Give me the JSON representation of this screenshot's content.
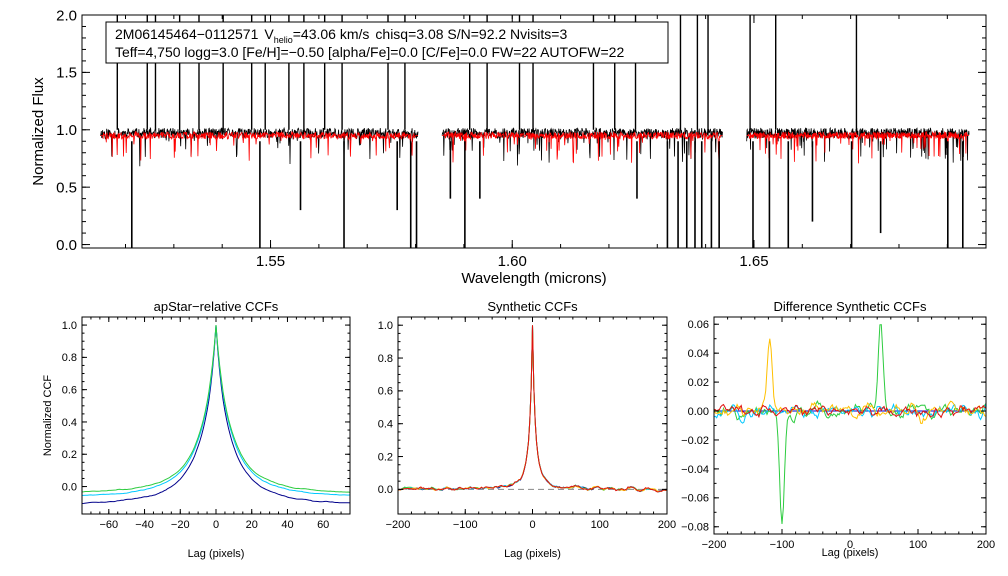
{
  "chart_data": [
    {
      "type": "line",
      "title": "",
      "xlabel": "Wavelength (microns)",
      "ylabel": "Normalized Flux",
      "xlim": [
        1.511,
        1.698
      ],
      "ylim": [
        -0.03,
        2.0
      ],
      "xticks": [
        1.55,
        1.6,
        1.65
      ],
      "xtick_labels": [
        "1.55",
        "1.60",
        "1.65"
      ],
      "yticks": [
        0.0,
        0.5,
        1.0,
        1.5,
        2.0
      ],
      "ytick_labels": [
        "0.0",
        "0.5",
        "1.0",
        "1.5",
        "2.0"
      ],
      "gaps": [
        [
          1.5805,
          1.5855
        ],
        [
          1.6435,
          1.6485
        ]
      ],
      "annotation": {
        "star_id": "2M06145464−0112571",
        "v_label": "V",
        "v_sub": "helio",
        "v_value": "=43.06 km/s",
        "line1_rest": "chisq=3.08  S/N=92.2  Nvisits=3",
        "line2": "Teff=4,750 logg=3.0 [Fe/H]=−0.50 [alpha/Fe]=0.0 [C/Fe]=0.0 FW=22 AUTOFW=22"
      },
      "series": [
        {
          "name": "observed",
          "color": "#000000",
          "continuum": 0.97
        },
        {
          "name": "model",
          "color": "#ff0000",
          "continuum": 0.95
        }
      ],
      "spikes_up": [
        1.5183,
        1.5245,
        1.5262,
        1.5312,
        1.5352,
        1.5402,
        1.5461,
        1.5489,
        1.5538,
        1.5569,
        1.5612,
        1.5648,
        1.5743,
        1.5778,
        1.5912,
        1.5948,
        1.6015,
        1.6043,
        1.6168,
        1.6212,
        1.6255,
        1.6348,
        1.6383,
        1.6405,
        1.6492,
        1.6545,
        1.6712
      ],
      "spikes_down": [
        [
          1.5213,
          -0.03
        ],
        [
          1.5478,
          -0.03
        ],
        [
          1.5562,
          0.3
        ],
        [
          1.5652,
          -0.03
        ],
        [
          1.5762,
          0.3
        ],
        [
          1.579,
          -0.03
        ],
        [
          1.5802,
          -0.03
        ],
        [
          1.5872,
          0.4
        ],
        [
          1.5902,
          -0.03
        ],
        [
          1.5933,
          0.4
        ],
        [
          1.6258,
          0.4
        ],
        [
          1.6321,
          -0.03
        ],
        [
          1.6343,
          -0.03
        ],
        [
          1.6361,
          -0.03
        ],
        [
          1.6378,
          -0.03
        ],
        [
          1.6392,
          -0.03
        ],
        [
          1.6412,
          -0.03
        ],
        [
          1.6428,
          -0.03
        ],
        [
          1.6498,
          -0.03
        ],
        [
          1.6532,
          -0.03
        ],
        [
          1.6571,
          -0.03
        ],
        [
          1.6621,
          0.2
        ],
        [
          1.6702,
          -0.03
        ],
        [
          1.6762,
          0.1
        ],
        [
          1.6901,
          -0.03
        ],
        [
          1.6932,
          -0.03
        ]
      ]
    },
    {
      "type": "line",
      "title": "apStar−relative CCFs",
      "xlabel": "Lag (pixels)",
      "ylabel": "Normalized CCF",
      "xlim": [
        -75,
        75
      ],
      "ylim": [
        -0.17,
        1.05
      ],
      "xticks": [
        -60,
        -40,
        -20,
        0,
        20,
        40,
        60
      ],
      "xtick_labels": [
        "−60",
        "−40",
        "−20",
        "0",
        "20",
        "40",
        "60"
      ],
      "yticks": [
        0.0,
        0.2,
        0.4,
        0.6,
        0.8,
        1.0
      ],
      "ytick_labels": [
        "0.0",
        "0.2",
        "0.4",
        "0.6",
        "0.8",
        "1.0"
      ],
      "series": [
        {
          "name": "blue",
          "color": "#00008b",
          "offset": -0.12,
          "width": 3.4
        },
        {
          "name": "cyan",
          "color": "#00c8ff",
          "offset": -0.07,
          "width": 3.6
        },
        {
          "name": "green",
          "color": "#2ecc40",
          "offset": -0.05,
          "width": 3.8
        }
      ]
    },
    {
      "type": "line",
      "title": "Synthetic CCFs",
      "xlabel": "Lag (pixels)",
      "ylabel": "",
      "xlim": [
        -200,
        200
      ],
      "ylim": [
        -0.15,
        1.05
      ],
      "xticks": [
        -200,
        -100,
        0,
        100,
        200
      ],
      "xtick_labels": [
        "−200",
        "−100",
        "0",
        "100",
        "200"
      ],
      "yticks": [
        0.0,
        0.2,
        0.4,
        0.6,
        0.8,
        1.0
      ],
      "ytick_labels": [
        "0.0",
        "0.2",
        "0.4",
        "0.6",
        "0.8",
        "1.0"
      ],
      "baseline": 0.0,
      "series": [
        {
          "name": "blue",
          "color": "#00008b"
        },
        {
          "name": "green",
          "color": "#2ecc40"
        },
        {
          "name": "cyan",
          "color": "#00c8ff"
        },
        {
          "name": "yellow",
          "color": "#ffc000"
        },
        {
          "name": "red",
          "color": "#e01010"
        }
      ]
    },
    {
      "type": "line",
      "title": "Difference Synthetic CCFs",
      "xlabel": "Lag (pixels)",
      "ylabel": "",
      "xlim": [
        -200,
        200
      ],
      "ylim": [
        -0.085,
        0.065
      ],
      "xticks": [
        -200,
        -100,
        0,
        100,
        200
      ],
      "xtick_labels": [
        "−200",
        "−100",
        "0",
        "100",
        "200"
      ],
      "yticks": [
        -0.08,
        -0.06,
        -0.04,
        -0.02,
        0.0,
        0.02,
        0.04,
        0.06
      ],
      "ytick_labels": [
        "−0.08",
        "−0.06",
        "−0.04",
        "−0.02",
        "0.00",
        "0.02",
        "0.04",
        "0.06"
      ],
      "series": [
        {
          "name": "blue",
          "color": "#0000cd"
        },
        {
          "name": "green",
          "color": "#2ecc40"
        },
        {
          "name": "cyan",
          "color": "#00c8ff"
        },
        {
          "name": "yellow",
          "color": "#ffc000"
        },
        {
          "name": "red",
          "color": "#e01010"
        }
      ],
      "features": [
        {
          "series": "green",
          "x": -100,
          "y": -0.078
        },
        {
          "series": "green",
          "x": 45,
          "y": 0.062
        },
        {
          "series": "yellow",
          "x": -118,
          "y": 0.05
        }
      ]
    }
  ]
}
